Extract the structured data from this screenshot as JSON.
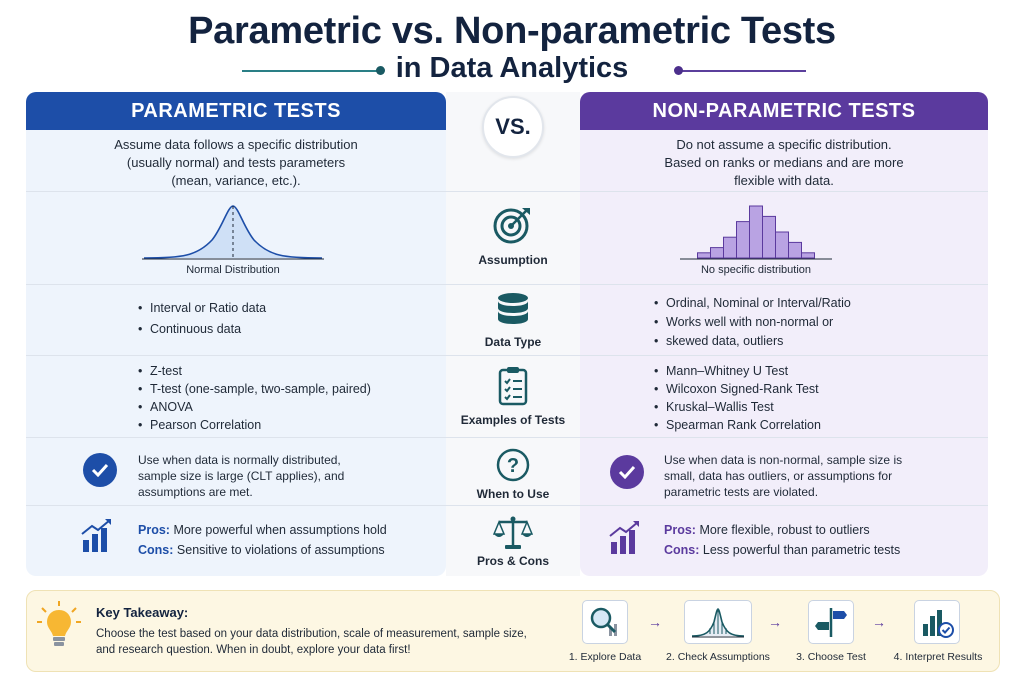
{
  "title": {
    "line1": "Parametric vs. Non-parametric Tests",
    "line2": "in Data Analytics"
  },
  "vs_label": "VS.",
  "parametric": {
    "header": "PARAMETRIC TESTS",
    "description": [
      "Assume data follows a specific distribution",
      "(usually normal) and tests parameters",
      "(mean, variance, etc.)."
    ],
    "distribution_label": "Normal Distribution",
    "data_type": [
      "Interval or Ratio data",
      "Continuous data"
    ],
    "examples": [
      "Z-test",
      "T-test (one-sample, two-sample, paired)",
      "ANOVA",
      "Pearson Correlation"
    ],
    "when_to_use": [
      "Use when data is normally distributed,",
      "sample size is large (CLT applies), and",
      "assumptions are met."
    ],
    "pros_key": "Pros:",
    "pros_text": "More powerful when assumptions hold",
    "cons_key": "Cons:",
    "cons_text": "Sensitive to violations of assumptions",
    "color": "#1d4ea8"
  },
  "nonparametric": {
    "header": "NON-PARAMETRIC TESTS",
    "description": [
      "Do not assume a specific distribution.",
      "Based on ranks or medians and are more",
      "flexible with data."
    ],
    "distribution_label": "No specific distribution",
    "data_type": [
      "Ordinal, Nominal or Interval/Ratio",
      "Works well with non-normal or",
      "skewed data, outliers"
    ],
    "examples": [
      "Mann–Whitney U Test",
      "Wilcoxon Signed-Rank Test",
      "Kruskal–Wallis Test",
      "Spearman Rank Correlation"
    ],
    "when_to_use": [
      "Use when data is non-normal, sample size is",
      "small, data has outliers, or assumptions for",
      "parametric tests are violated."
    ],
    "pros_key": "Pros:",
    "pros_text": "More flexible, robust to outliers",
    "cons_key": "Cons:",
    "cons_text": "Less powerful than parametric tests",
    "color": "#5b3a9e",
    "histogram_values": [
      1,
      2,
      4,
      7,
      10,
      8,
      5,
      3,
      1
    ]
  },
  "criteria": {
    "assumption": "Assumption",
    "data_type": "Data Type",
    "examples": "Examples of Tests",
    "when_to_use": "When to Use",
    "pros_cons": "Pros & Cons"
  },
  "takeaway": {
    "title": "Key Takeaway:",
    "line1": "Choose the test based on your data distribution, scale of measurement, sample size,",
    "line2": "and research question. When in doubt, explore your data first!"
  },
  "steps": [
    "1. Explore Data",
    "2. Check Assumptions",
    "3. Choose Test",
    "4. Interpret Results"
  ]
}
